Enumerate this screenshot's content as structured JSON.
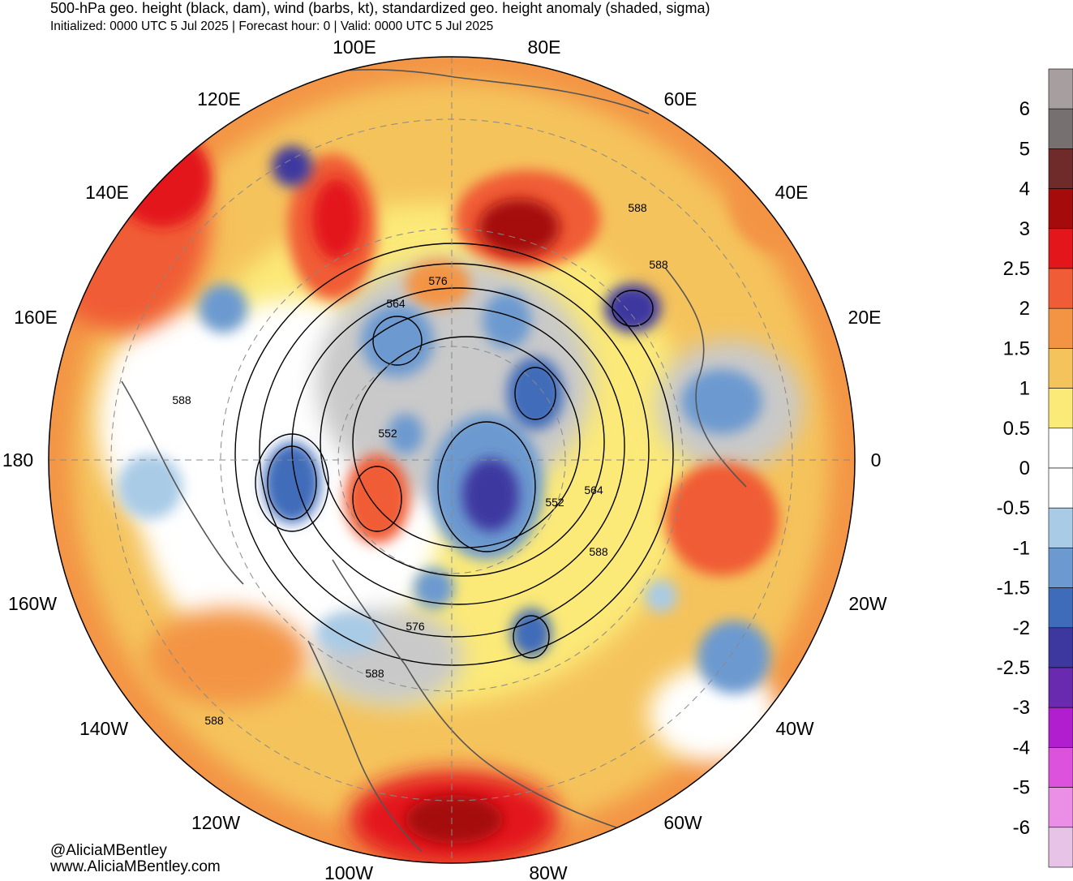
{
  "header": {
    "title": "500-hPa geo. height (black, dam), wind (barbs, kt), standardized geo. height anomaly (shaded, sigma)",
    "subtitle": "Initialized: 0000 UTC 5 Jul 2025 | Forecast hour: 0 | Valid: 0000 UTC 5 Jul 2025"
  },
  "map": {
    "projection": "north-polar-stereographic",
    "longitude_labels": [
      {
        "text": "100E",
        "lon": 100
      },
      {
        "text": "80E",
        "lon": 80
      },
      {
        "text": "120E",
        "lon": 120
      },
      {
        "text": "60E",
        "lon": 60
      },
      {
        "text": "140E",
        "lon": 140
      },
      {
        "text": "40E",
        "lon": 40
      },
      {
        "text": "160E",
        "lon": 160
      },
      {
        "text": "20E",
        "lon": 20
      },
      {
        "text": "180",
        "lon": 180
      },
      {
        "text": "0",
        "lon": 0
      },
      {
        "text": "160W",
        "lon": -160
      },
      {
        "text": "20W",
        "lon": -20
      },
      {
        "text": "140W",
        "lon": -140
      },
      {
        "text": "40W",
        "lon": -40
      },
      {
        "text": "120W",
        "lon": -120
      },
      {
        "text": "60W",
        "lon": -60
      },
      {
        "text": "100W",
        "lon": -100
      },
      {
        "text": "80W",
        "lon": -80
      }
    ],
    "contour_labels": [
      "588",
      "588",
      "576",
      "564",
      "588",
      "552",
      "552",
      "564",
      "588",
      "576",
      "588",
      "588"
    ],
    "anomaly_features": [
      {
        "name": "siberia-ridge",
        "sigma": 3
      },
      {
        "name": "east-siberia-ridge",
        "sigma": 2.5
      },
      {
        "name": "europe-ridge",
        "sigma": 2
      },
      {
        "name": "central-america-ridge",
        "sigma": 3
      },
      {
        "name": "baffin-low",
        "sigma": -2.5
      },
      {
        "name": "arctic-low",
        "sigma": -2
      },
      {
        "name": "bering-low",
        "sigma": -2
      },
      {
        "name": "scandinavia-low",
        "sigma": -2.5
      },
      {
        "name": "atlantic-low",
        "sigma": -1.5
      },
      {
        "name": "alaska-ridge",
        "sigma": 2
      }
    ]
  },
  "colorbar": {
    "labels": [
      "6",
      "5",
      "4",
      "3",
      "2.5",
      "2",
      "1.5",
      "1",
      "0.5",
      "0",
      "-0.5",
      "-1",
      "-1.5",
      "-2",
      "-2.5",
      "-3",
      "-4",
      "-5",
      "-6"
    ],
    "colors": [
      "#a79f9f",
      "#767170",
      "#6f2a2a",
      "#a50b0b",
      "#e3161b",
      "#f05c35",
      "#f39445",
      "#f5c35c",
      "#fbe978",
      "#ffffff",
      "#ffffff",
      "#a9cbe6",
      "#6c9ad0",
      "#3f6cba",
      "#3c38a0",
      "#6a2ab0",
      "#b11ed0",
      "#dd52dd",
      "#ea8ee6",
      "#e8c3e8"
    ]
  },
  "credits": {
    "handle": "@AliciaMBentley",
    "site": "www.AliciaMBentley.com"
  }
}
